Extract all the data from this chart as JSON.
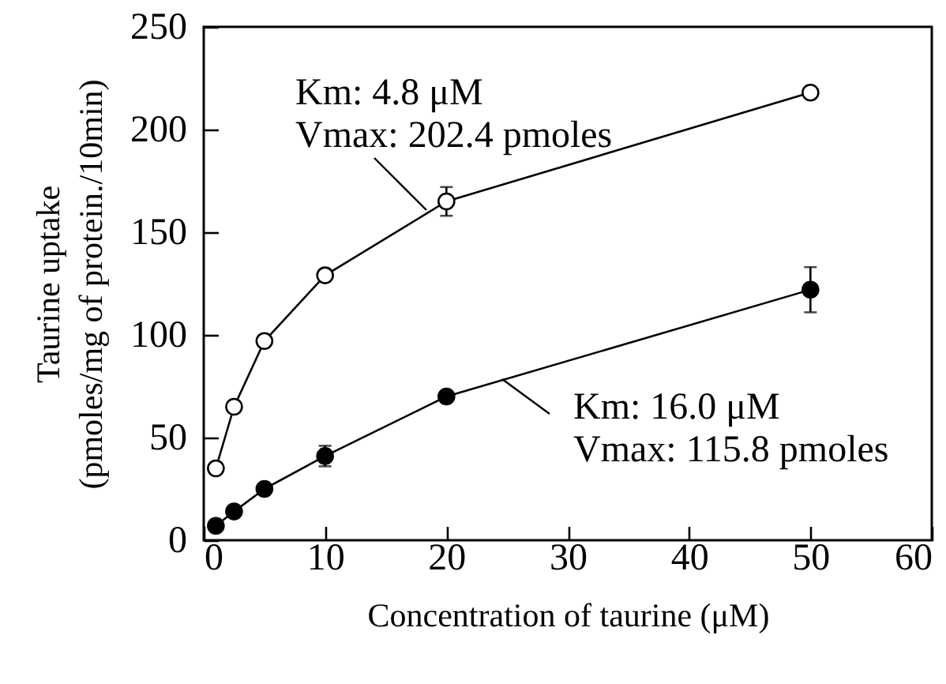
{
  "chart_data": {
    "type": "line",
    "xlabel": "Concentration of taurine (μM)",
    "ylabel": "Taurine uptake\n(pmoles/mg of protein./10min)",
    "x": [
      1,
      2.5,
      5,
      10,
      20,
      50
    ],
    "series": [
      {
        "color": "#ffffff",
        "values": [
          35,
          65,
          97,
          129,
          165,
          218
        ],
        "errors": [
          null,
          null,
          null,
          null,
          7,
          null
        ]
      },
      {
        "color": "#000000",
        "values": [
          7,
          14,
          25,
          41,
          70,
          122
        ],
        "errors": [
          null,
          null,
          null,
          5,
          null,
          11
        ]
      }
    ],
    "xlim": [
      0,
      60
    ],
    "xticks": [
      0,
      10,
      20,
      30,
      40,
      50,
      60
    ],
    "ylim": [
      0,
      250
    ],
    "yticks": [
      0,
      50,
      100,
      150,
      200,
      250
    ],
    "marker": "circle",
    "annotations": [
      "Km: 4.8 μM\nVmax: 202.4 pmoles",
      "Km: 16.0 μM\nVmax: 115.8 pmoles"
    ]
  }
}
